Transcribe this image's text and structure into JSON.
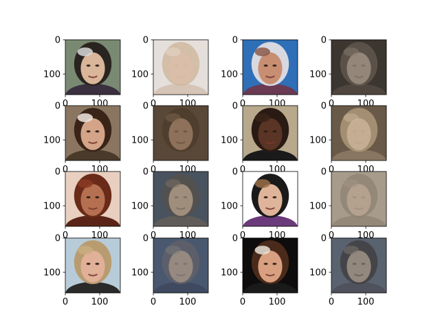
{
  "chart_data": {
    "type": "image-grid",
    "rows": 4,
    "cols": 4,
    "title": "",
    "xlabel": "",
    "ylabel": "",
    "xlim": [
      0,
      160
    ],
    "ylim": [
      160,
      0
    ],
    "xticks": [
      0,
      100
    ],
    "yticks": [
      0,
      100
    ],
    "panels": [
      {
        "row": 0,
        "col": 0,
        "kind": "original",
        "tones": {
          "bg": "#7a8a72",
          "skin": "#d9b59a",
          "hair": "#2a2420",
          "accent": "#d8d8d8",
          "shirt": "#3a3040"
        }
      },
      {
        "row": 0,
        "col": 1,
        "kind": "reconstruction",
        "tones": {
          "bg": "#e6e0dc",
          "skin": "#d8b89e",
          "hair": "#c8ab88",
          "accent": "#e8d8c8",
          "shirt": "#d0b8a4"
        }
      },
      {
        "row": 0,
        "col": 2,
        "kind": "original",
        "tones": {
          "bg": "#2f6fb8",
          "skin": "#c88e72",
          "hair": "#d8d8e0",
          "accent": "#8a5a4a",
          "shirt": "#6a3a52"
        }
      },
      {
        "row": 0,
        "col": 3,
        "kind": "reconstruction",
        "tones": {
          "bg": "#3c3630",
          "skin": "#a89888",
          "hair": "#6e6458",
          "accent": "#9a8a7c",
          "shirt": "#5a5048"
        }
      },
      {
        "row": 1,
        "col": 0,
        "kind": "original",
        "tones": {
          "bg": "#8a7660",
          "skin": "#d4a488",
          "hair": "#3a2418",
          "accent": "#f0e8e0",
          "shirt": "#4a3a2a"
        }
      },
      {
        "row": 1,
        "col": 1,
        "kind": "reconstruction",
        "tones": {
          "bg": "#5a4838",
          "skin": "#9a7a62",
          "hair": "#4a3828",
          "accent": "#8a6e58",
          "shirt": "#5a4a3a"
        }
      },
      {
        "row": 1,
        "col": 2,
        "kind": "original",
        "tones": {
          "bg": "#b8a88c",
          "skin": "#5a3424",
          "hair": "#2a1a14",
          "accent": "#3a2418",
          "shirt": "#1a1a1a"
        }
      },
      {
        "row": 1,
        "col": 3,
        "kind": "reconstruction",
        "tones": {
          "bg": "#6a5a48",
          "skin": "#d8c0a4",
          "hair": "#c8b08c",
          "accent": "#e0ccb0",
          "shirt": "#9a8670"
        }
      },
      {
        "row": 2,
        "col": 0,
        "kind": "original",
        "tones": {
          "bg": "#e8cfc0",
          "skin": "#b47050",
          "hair": "#6a2a18",
          "accent": "#8a3a24",
          "shirt": "#5a2418"
        }
      },
      {
        "row": 2,
        "col": 1,
        "kind": "reconstruction",
        "tones": {
          "bg": "#4a5460",
          "skin": "#b49c84",
          "hair": "#5a5048",
          "accent": "#8a7868",
          "shirt": "#6a6058"
        }
      },
      {
        "row": 2,
        "col": 2,
        "kind": "original",
        "tones": {
          "bg": "#ffffff",
          "skin": "#e0b49a",
          "hair": "#1a1a1a",
          "accent": "#9a7048",
          "shirt": "#6a3a7a"
        }
      },
      {
        "row": 2,
        "col": 3,
        "kind": "reconstruction",
        "tones": {
          "bg": "#a89c8c",
          "skin": "#b8a490",
          "hair": "#8a7c6c",
          "accent": "#a89684",
          "shirt": "#8a7e70"
        }
      },
      {
        "row": 3,
        "col": 0,
        "kind": "original",
        "tones": {
          "bg": "#b8cbd8",
          "skin": "#e0b098",
          "hair": "#b89c70",
          "accent": "#c8ae80",
          "shirt": "#2a2a2a"
        }
      },
      {
        "row": 3,
        "col": 1,
        "kind": "reconstruction",
        "tones": {
          "bg": "#4a5870",
          "skin": "#a89484",
          "hair": "#6a6468",
          "accent": "#8a847c",
          "shirt": "#3a4258"
        }
      },
      {
        "row": 3,
        "col": 2,
        "kind": "original",
        "tones": {
          "bg": "#0e0c0c",
          "skin": "#d8a080",
          "hair": "#4a2a1a",
          "accent": "#e8e0d8",
          "shirt": "#1a1a1a"
        }
      },
      {
        "row": 3,
        "col": 3,
        "kind": "reconstruction",
        "tones": {
          "bg": "#5a6270",
          "skin": "#a09080",
          "hair": "#3a3432",
          "accent": "#8a7e74",
          "shirt": "#4a4a52"
        }
      }
    ]
  }
}
